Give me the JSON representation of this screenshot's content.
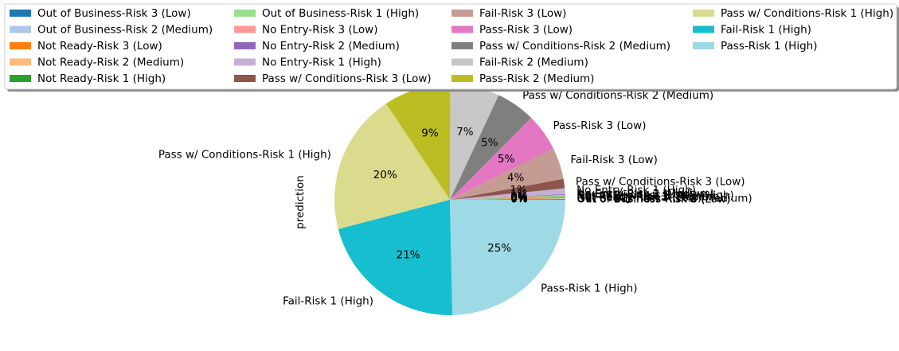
{
  "chart_data": {
    "type": "pie",
    "ylabel": "prediction",
    "categories": [
      "Out of Business-Risk 3 (Low)",
      "Out of Business-Risk 2 (Medium)",
      "Not Ready-Risk 3 (Low)",
      "Not Ready-Risk 2 (Medium)",
      "Not Ready-Risk 1 (High)",
      "Out of Business-Risk 1 (High)",
      "No Entry-Risk 3 (Low)",
      "No Entry-Risk 2 (Medium)",
      "No Entry-Risk 1 (High)",
      "Pass w/ Conditions-Risk 3 (Low)",
      "Fail-Risk 3 (Low)",
      "Pass-Risk 3 (Low)",
      "Pass w/ Conditions-Risk 2 (Medium)",
      "Fail-Risk 2 (Medium)",
      "Pass-Risk 2 (Medium)",
      "Pass w/ Conditions-Risk 1 (High)",
      "Fail-Risk 1 (High)",
      "Pass-Risk 1 (High)"
    ],
    "values": [
      0.1,
      0.1,
      0.1,
      0.1,
      0.1,
      0.1,
      0.1,
      0.1,
      0.8,
      1.3,
      4.4,
      5.3,
      5.5,
      6.9,
      9.4,
      19.8,
      21.3,
      24.7
    ],
    "pct_labels": [
      "0%",
      "0%",
      "0%",
      "0%",
      "0%",
      "0%",
      "0%",
      "0%",
      "1%",
      "1%",
      "4%",
      "5%",
      "5%",
      "7%",
      "9%",
      "20%",
      "21%",
      "25%"
    ],
    "colors": [
      "#1f77b4",
      "#aec7e8",
      "#ff7f0e",
      "#ffbb78",
      "#2ca02c",
      "#98df8a",
      "#ff9896",
      "#9467bd",
      "#c5b0d5",
      "#8c564b",
      "#c49c94",
      "#e377c2",
      "#7f7f7f",
      "#c7c7c7",
      "#bcbd22",
      "#dbdb8d",
      "#17becf",
      "#9edae5"
    ],
    "legend": {
      "placement": "top",
      "columns": 4
    }
  }
}
